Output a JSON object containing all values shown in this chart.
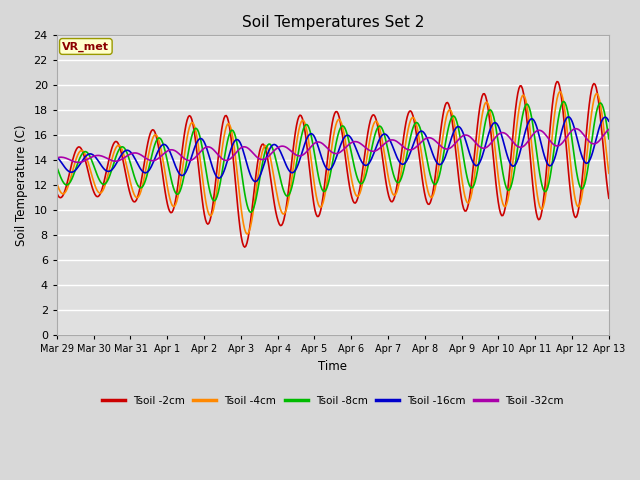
{
  "title": "Soil Temperatures Set 2",
  "xlabel": "Time",
  "ylabel": "Soil Temperature (C)",
  "ylim": [
    0,
    24
  ],
  "ytick_interval": 2,
  "bg_color": "#e0e0e0",
  "fig_bg_color": "#d8d8d8",
  "legend_label": "VR_met",
  "series_names": [
    "Tsoil -2cm",
    "Tsoil -4cm",
    "Tsoil -8cm",
    "Tsoil -16cm",
    "Tsoil -32cm"
  ],
  "series_colors": [
    "#cc0000",
    "#ff8800",
    "#00bb00",
    "#0000cc",
    "#aa00aa"
  ],
  "xtick_labels": [
    "Mar 29",
    "Mar 30",
    "Mar 31",
    "Apr 1",
    "Apr 2",
    "Apr 3",
    "Apr 4",
    "Apr 5",
    "Apr 6",
    "Apr 7",
    "Apr 8",
    "Apr 9",
    "Apr 10",
    "Apr 11",
    "Apr 12",
    "Apr 13"
  ],
  "n_points": 480,
  "days": 15
}
